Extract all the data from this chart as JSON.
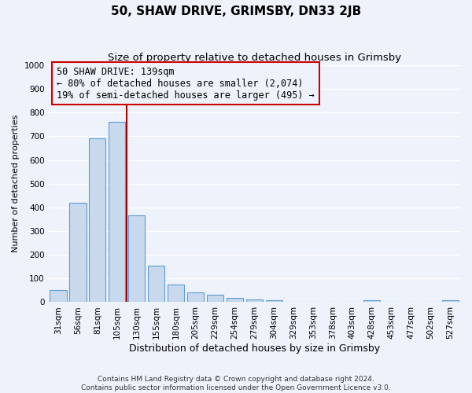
{
  "title": "50, SHAW DRIVE, GRIMSBY, DN33 2JB",
  "subtitle": "Size of property relative to detached houses in Grimsby",
  "xlabel": "Distribution of detached houses by size in Grimsby",
  "ylabel": "Number of detached properties",
  "categories": [
    "31sqm",
    "56sqm",
    "81sqm",
    "105sqm",
    "130sqm",
    "155sqm",
    "180sqm",
    "205sqm",
    "229sqm",
    "254sqm",
    "279sqm",
    "304sqm",
    "329sqm",
    "353sqm",
    "378sqm",
    "403sqm",
    "428sqm",
    "453sqm",
    "477sqm",
    "502sqm",
    "527sqm"
  ],
  "values": [
    50,
    420,
    690,
    760,
    365,
    155,
    75,
    42,
    32,
    18,
    11,
    9,
    0,
    0,
    0,
    0,
    8,
    0,
    0,
    0,
    8
  ],
  "bar_fill_color": "#c8d9ee",
  "bar_edge_color": "#5b9bd5",
  "highlight_line_color": "#aa0000",
  "annotation_line1": "50 SHAW DRIVE: 139sqm",
  "annotation_line2": "← 80% of detached houses are smaller (2,074)",
  "annotation_line3": "19% of semi-detached houses are larger (495) →",
  "annotation_box_edge_color": "#cc0000",
  "annotation_fontsize": 8.5,
  "ylim": [
    0,
    1000
  ],
  "yticks": [
    0,
    100,
    200,
    300,
    400,
    500,
    600,
    700,
    800,
    900,
    1000
  ],
  "footer_line1": "Contains HM Land Registry data © Crown copyright and database right 2024.",
  "footer_line2": "Contains public sector information licensed under the Open Government Licence v3.0.",
  "background_color": "#eef2fb",
  "title_fontsize": 11,
  "subtitle_fontsize": 9.5,
  "xlabel_fontsize": 9,
  "ylabel_fontsize": 8,
  "tick_fontsize": 7.5,
  "grid_color": "#ffffff",
  "footer_fontsize": 6.5
}
